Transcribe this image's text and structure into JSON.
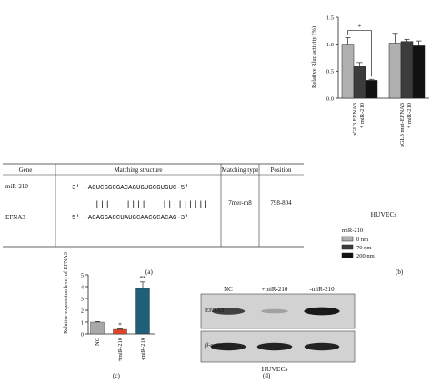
{
  "chart_data": [
    {
      "type": "bar",
      "panel_label": "(b)",
      "ylabel": "Relative Rluc activity (%)",
      "ylim": [
        0,
        1.5
      ],
      "yticks": [
        "0.0",
        "0.5",
        "1.0",
        "1.5"
      ],
      "groups": [
        "pGL3 EFNA3 + miR-210",
        "pGL3 mut-EFNA3 + miR-210"
      ],
      "series": [
        {
          "name": "0 nm",
          "color": "#b0b0b0",
          "values": [
            1.0,
            1.02
          ],
          "errors": [
            0.12,
            0.18
          ]
        },
        {
          "name": "70 nm",
          "color": "#3c3c3c",
          "values": [
            0.6,
            1.05
          ],
          "errors": [
            0.06,
            0.04
          ]
        },
        {
          "name": "200 nm",
          "color": "#111111",
          "values": [
            0.33,
            0.97
          ],
          "errors": [
            0.02,
            0.09
          ]
        }
      ],
      "significance": [
        {
          "group": 0,
          "from_series": 0,
          "to_series": 2,
          "label": "*"
        }
      ],
      "xlabel": "HUVECs",
      "legend_title": "miR-210",
      "legend_position": "bottom"
    },
    {
      "type": "bar",
      "panel_label": "(c)",
      "ylabel": "Relative expression level of EFNA3",
      "ylim": [
        0,
        5
      ],
      "yticks": [
        "0",
        "1",
        "2",
        "3",
        "4",
        "5"
      ],
      "categories": [
        "NC",
        "+miR-210",
        "-miR-210"
      ],
      "values": [
        1.0,
        0.38,
        3.85
      ],
      "errors": [
        0.05,
        0.05,
        0.55
      ],
      "colors": [
        "#a8a8a8",
        "#e0452a",
        "#1f5f7a"
      ],
      "annotations": [
        "",
        "*",
        "**"
      ]
    }
  ],
  "table": {
    "panel_label": "(a)",
    "headers": [
      "Gene",
      "Matching structure",
      "Matching type",
      "Position"
    ],
    "genes": [
      "miR-210",
      "EFNA3"
    ],
    "seq_top": "3′ -AGUCGGCGACAGUGUGCGUGUC-5′",
    "seq_bottom": "5′ -ACAGGACCUAUGCAACGCACAG-3′",
    "pair_lines": "|||   ||||   |||||||||",
    "matching_type": "7mer-m8",
    "position": "798-804"
  },
  "blot": {
    "panel_label": "(d)",
    "lanes": [
      "NC",
      "+miR-210",
      "-miR-210"
    ],
    "rows": [
      {
        "label": "EFNA3",
        "intensity": [
          0.75,
          0.25,
          0.95
        ]
      },
      {
        "label": "β-actin",
        "intensity": [
          0.9,
          0.9,
          0.9
        ]
      }
    ],
    "caption": "HUVECs"
  }
}
